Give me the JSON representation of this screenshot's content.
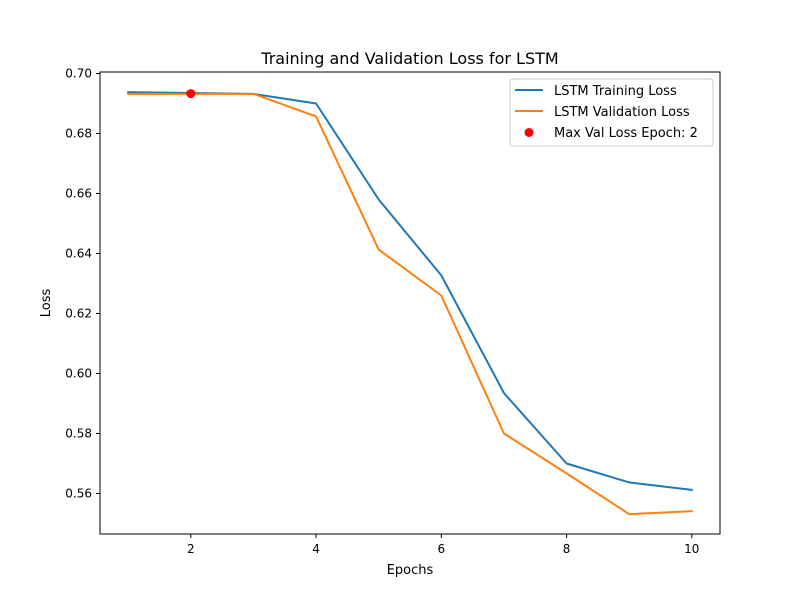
{
  "chart_data": {
    "type": "line",
    "title": "Training and Validation Loss for LSTM",
    "xlabel": "Epochs",
    "ylabel": "Loss",
    "xlim": [
      0.55,
      10.45
    ],
    "ylim": [
      0.5465,
      0.7005
    ],
    "x_ticks": [
      2,
      4,
      6,
      8,
      10
    ],
    "y_ticks": [
      0.56,
      0.58,
      0.6,
      0.62,
      0.64,
      0.66,
      0.68,
      0.7
    ],
    "y_tick_labels": [
      "0.56",
      "0.58",
      "0.60",
      "0.62",
      "0.64",
      "0.66",
      "0.68",
      "0.70"
    ],
    "grid": false,
    "legend_position": "top-right",
    "x": [
      1,
      2,
      3,
      4,
      5,
      6,
      7,
      8,
      9,
      10
    ],
    "series": [
      {
        "name": "LSTM Training Loss",
        "color": "#1f77b4",
        "values": [
          0.6938,
          0.6935,
          0.6932,
          0.69,
          0.658,
          0.6327,
          0.5935,
          0.57,
          0.5637,
          0.5612
        ]
      },
      {
        "name": "LSTM Validation Loss",
        "color": "#ff7f0e",
        "values": [
          0.6932,
          0.6932,
          0.6932,
          0.6857,
          0.6413,
          0.626,
          0.58,
          0.5667,
          0.5531,
          0.5541
        ]
      }
    ],
    "marker": {
      "name": "Max Val Loss Epoch: 2",
      "color": "#ff0000",
      "x": 2,
      "y": 0.6933
    }
  }
}
